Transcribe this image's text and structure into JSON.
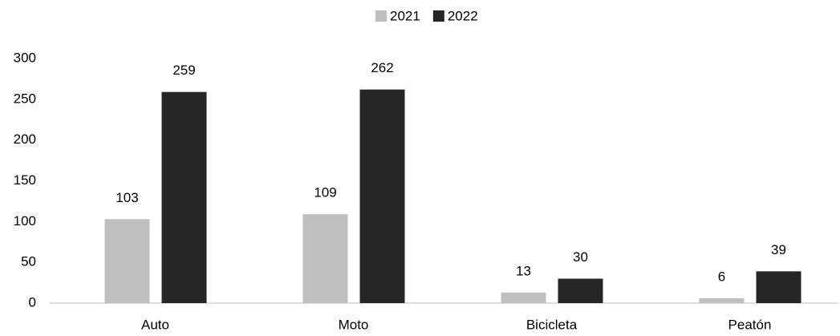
{
  "chart_data": {
    "type": "bar",
    "categories": [
      "Auto",
      "Moto",
      "Bicicleta",
      "Peatón"
    ],
    "series": [
      {
        "name": "2021",
        "color": "#bfbfbf",
        "values": [
          103,
          109,
          13,
          6
        ]
      },
      {
        "name": "2022",
        "color": "#262626",
        "values": [
          259,
          262,
          30,
          39
        ]
      }
    ],
    "ylim": [
      0,
      300
    ],
    "yticks": [
      0,
      50,
      100,
      150,
      200,
      250,
      300
    ],
    "grid": false,
    "legend": "top"
  }
}
